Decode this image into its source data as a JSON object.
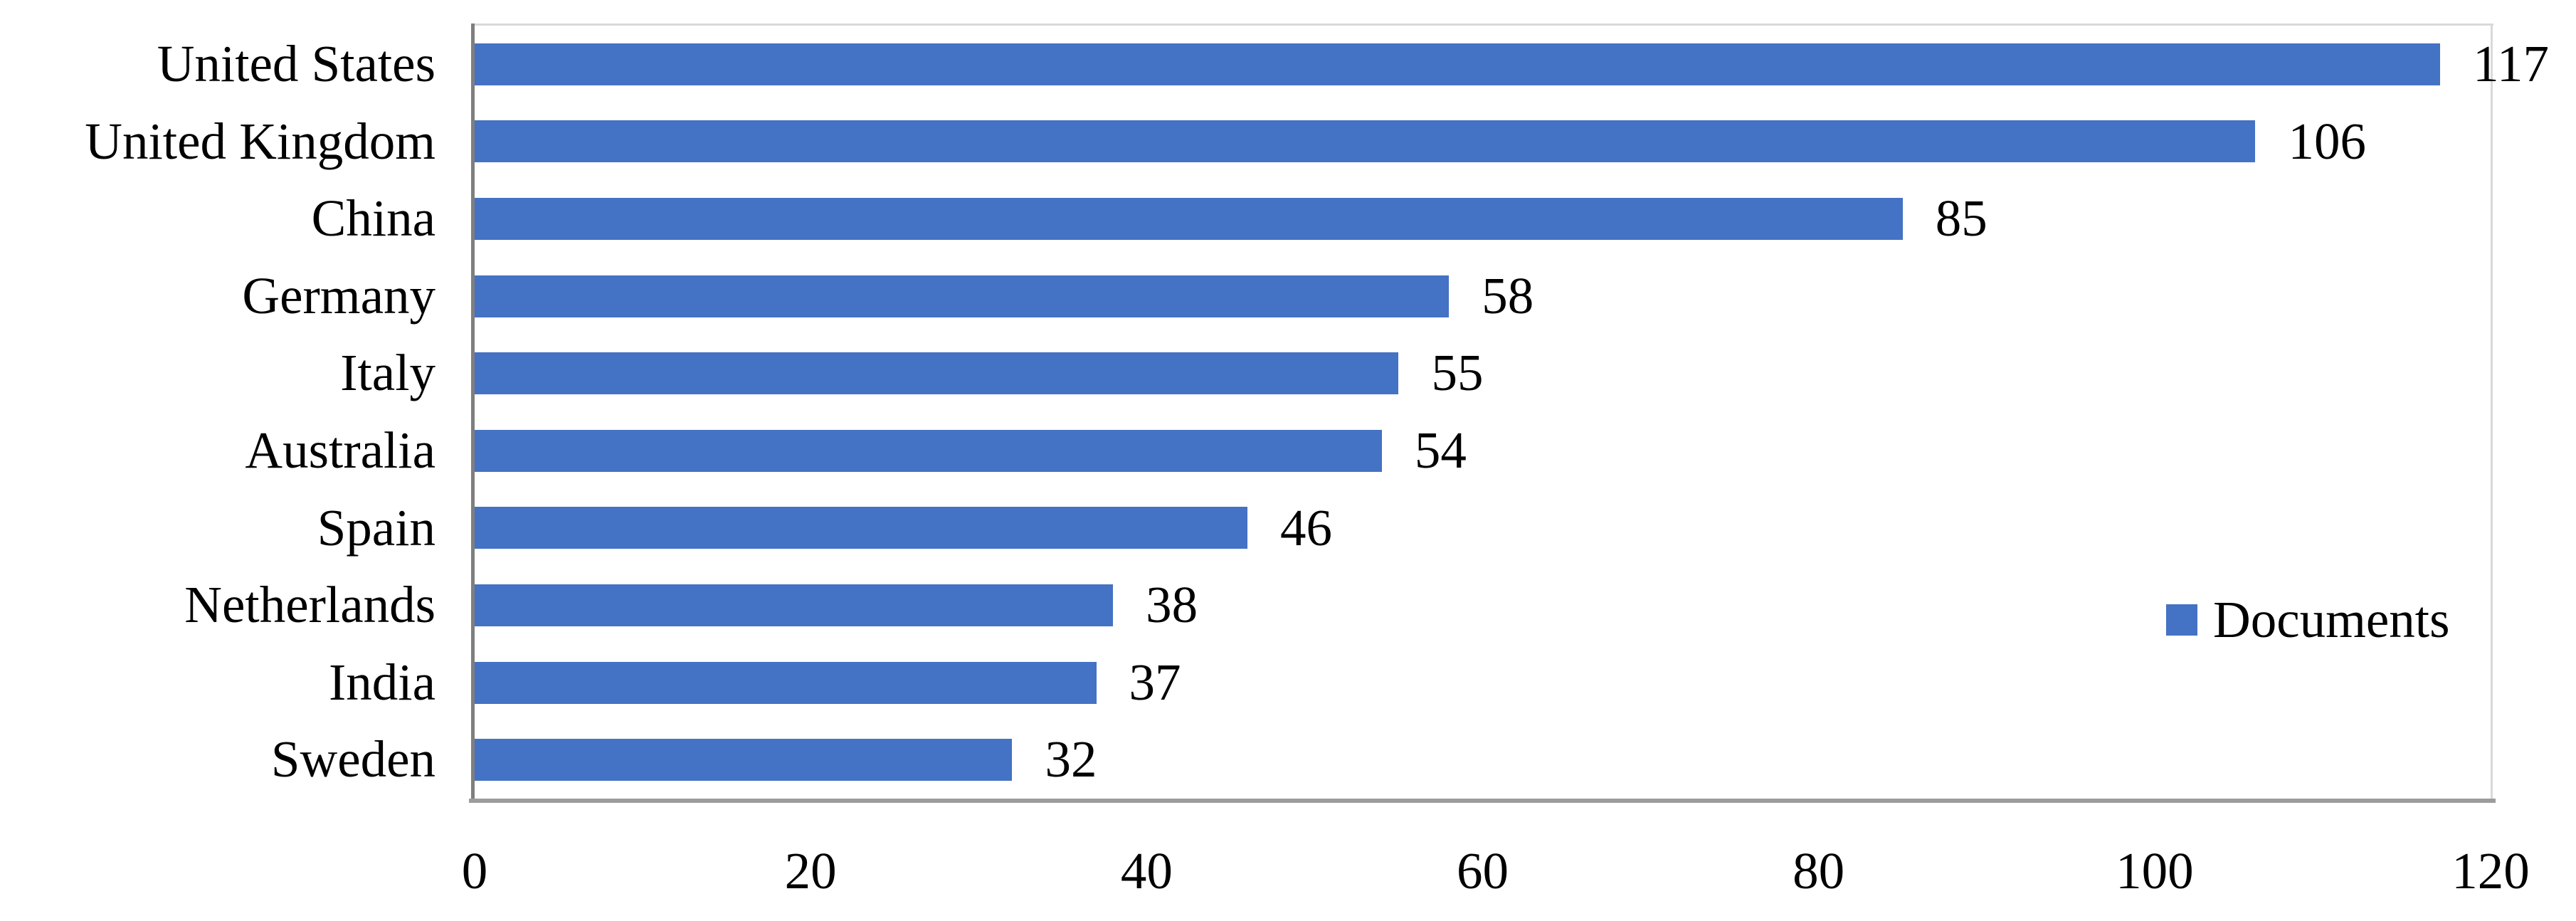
{
  "chart_data": {
    "type": "bar",
    "orientation": "horizontal",
    "title": "",
    "categories": [
      "United States",
      "United Kingdom",
      "China",
      "Germany",
      "Italy",
      "Australia",
      "Spain",
      "Netherlands",
      "India",
      "Sweden"
    ],
    "values": [
      117,
      106,
      85,
      58,
      55,
      54,
      46,
      38,
      37,
      32
    ],
    "series": [
      {
        "name": "Documents",
        "values": [
          117,
          106,
          85,
          58,
          55,
          54,
          46,
          38,
          37,
          32
        ]
      }
    ],
    "xlabel": "",
    "ylabel": "",
    "xlim": [
      0,
      120
    ],
    "x_ticks": [
      "0",
      "20",
      "40",
      "60",
      "80",
      "100",
      "120"
    ],
    "x_tick_values": [
      0,
      20,
      40,
      60,
      80,
      100,
      120
    ],
    "data_labels_shown": true,
    "grid": false,
    "legend": {
      "label": "Documents",
      "position": "right"
    },
    "colors": {
      "bar": "#4472C4",
      "left_axis_line": "#7F7F7F",
      "bottom_axis_line": "#9C9C9C",
      "plot_border": "#D9D9D9",
      "text": "#000000",
      "background": "#FFFFFF"
    }
  }
}
